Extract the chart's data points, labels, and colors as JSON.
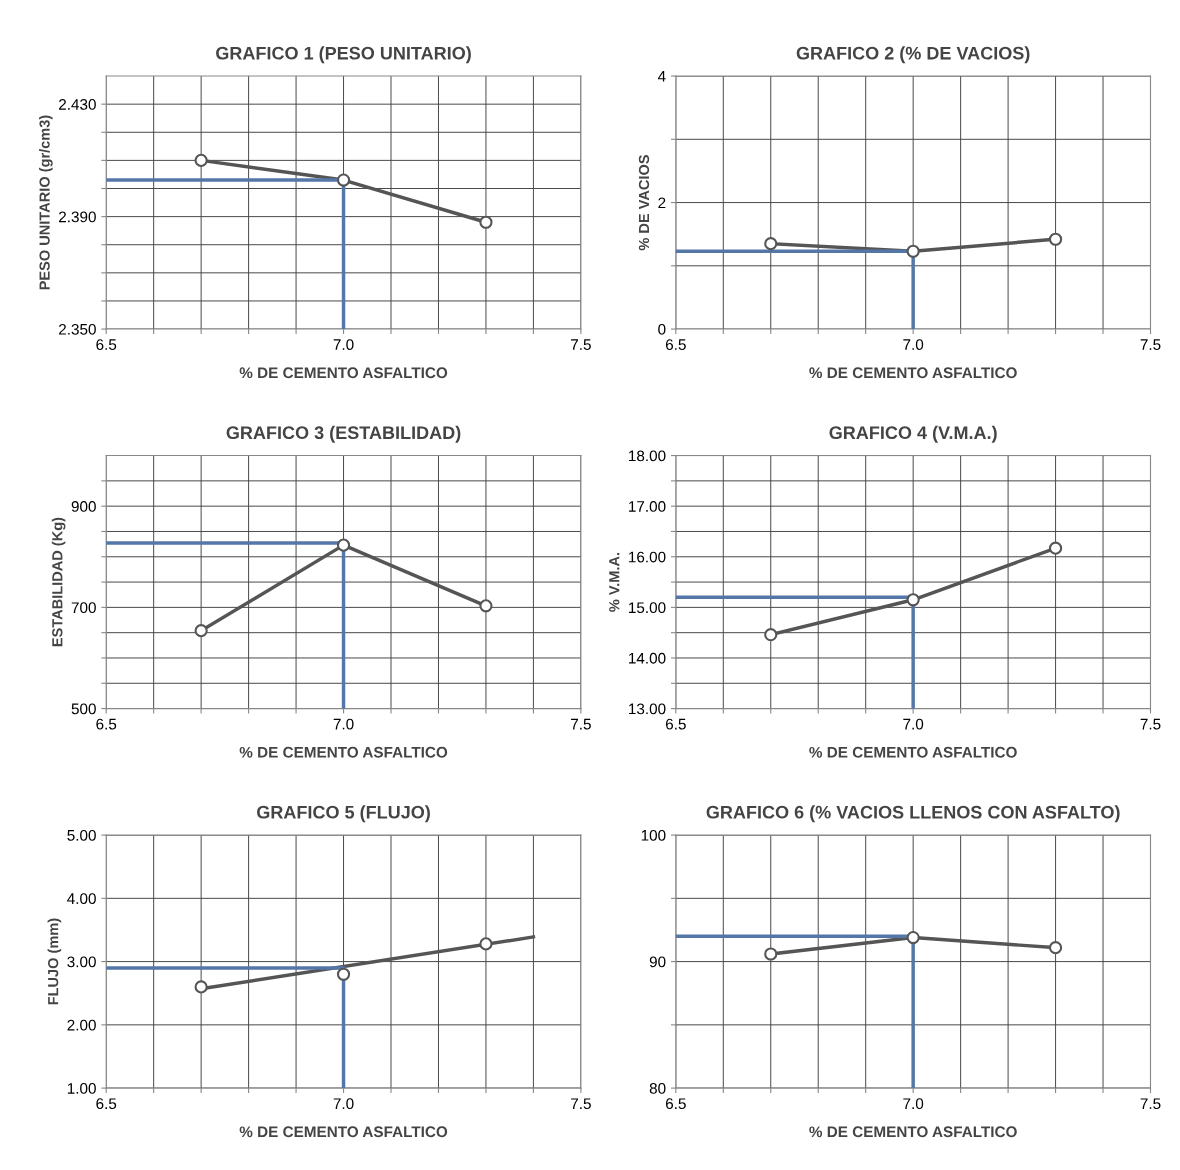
{
  "chart_data": [
    {
      "type": "line",
      "title": "GRAFICO 1 (PESO UNITARIO)",
      "xlabel": "% DE CEMENTO ASFALTICO",
      "ylabel": "PESO UNITARIO (gr/cm3)",
      "grid": true,
      "marker": "circle",
      "line_style": "solid",
      "xlim": [
        6.5,
        7.5
      ],
      "xticks": [
        {
          "value": 6.5,
          "label": "6.5"
        },
        {
          "value": 6.6,
          "label": null
        },
        {
          "value": 6.7,
          "label": null
        },
        {
          "value": 6.8,
          "label": null
        },
        {
          "value": 6.9,
          "label": null
        },
        {
          "value": 7.0,
          "label": "7.0"
        },
        {
          "value": 7.1,
          "label": null
        },
        {
          "value": 7.2,
          "label": null
        },
        {
          "value": 7.3,
          "label": null
        },
        {
          "value": 7.4,
          "label": null
        },
        {
          "value": 7.5,
          "label": "7.5"
        }
      ],
      "ylim": [
        2.35,
        2.44
      ],
      "yticks": [
        {
          "value": 2.35,
          "label": "2.350"
        },
        {
          "value": 2.36,
          "label": null
        },
        {
          "value": 2.37,
          "label": null
        },
        {
          "value": 2.38,
          "label": null
        },
        {
          "value": 2.39,
          "label": "2.390"
        },
        {
          "value": 2.4,
          "label": null
        },
        {
          "value": 2.41,
          "label": null
        },
        {
          "value": 2.42,
          "label": null
        },
        {
          "value": 2.43,
          "label": "2.430"
        }
      ],
      "series": [
        {
          "color": "#555555",
          "x": [
            6.7,
            7.0,
            7.3
          ],
          "values": [
            2.41,
            2.403,
            2.388
          ]
        },
        {
          "type": "line",
          "color": "#5577a8",
          "marker": "none",
          "x": [
            6.5,
            7.0,
            7.0
          ],
          "values": [
            2.403,
            2.403,
            2.35
          ]
        }
      ]
    },
    {
      "type": "line",
      "title": "GRAFICO 2 (% DE VACIOS)",
      "xlabel": "% DE CEMENTO ASFALTICO",
      "ylabel": "% DE VACIOS",
      "grid": true,
      "marker": "circle",
      "line_style": "solid",
      "xlim": [
        6.5,
        7.5
      ],
      "xticks": [
        {
          "value": 6.5,
          "label": "6.5"
        },
        {
          "value": 6.6,
          "label": null
        },
        {
          "value": 6.7,
          "label": null
        },
        {
          "value": 6.8,
          "label": null
        },
        {
          "value": 6.9,
          "label": null
        },
        {
          "value": 7.0,
          "label": "7.0"
        },
        {
          "value": 7.1,
          "label": null
        },
        {
          "value": 7.2,
          "label": null
        },
        {
          "value": 7.3,
          "label": null
        },
        {
          "value": 7.4,
          "label": null
        },
        {
          "value": 7.5,
          "label": "7.5"
        }
      ],
      "ylim": [
        0,
        4
      ],
      "yticks": [
        0,
        {
          "value": 1,
          "label": null
        },
        2,
        {
          "value": 3,
          "label": null
        },
        4
      ],
      "series": [
        {
          "color": "#555555",
          "x": [
            6.7,
            7.0,
            7.3
          ],
          "values": [
            1.35,
            1.23,
            1.42
          ]
        },
        {
          "type": "line",
          "color": "#5577a8",
          "marker": "none",
          "x": [
            6.5,
            7.0,
            7.0
          ],
          "values": [
            1.23,
            1.23,
            0
          ]
        }
      ]
    },
    {
      "type": "line",
      "title": "GRAFICO 3 (ESTABILIDAD)",
      "xlabel": "% DE CEMENTO ASFALTICO",
      "ylabel": "ESTABILIDAD (Kg)",
      "grid": true,
      "marker": "circle",
      "line_style": "solid",
      "xlim": [
        6.5,
        7.5
      ],
      "xticks": [
        {
          "value": 6.5,
          "label": "6.5"
        },
        {
          "value": 6.6,
          "label": null
        },
        {
          "value": 6.7,
          "label": null
        },
        {
          "value": 6.8,
          "label": null
        },
        {
          "value": 6.9,
          "label": null
        },
        {
          "value": 7.0,
          "label": "7.0"
        },
        {
          "value": 7.1,
          "label": null
        },
        {
          "value": 7.2,
          "label": null
        },
        {
          "value": 7.3,
          "label": null
        },
        {
          "value": 7.4,
          "label": null
        },
        {
          "value": 7.5,
          "label": "7.5"
        }
      ],
      "ylim": [
        500,
        1000
      ],
      "yticks": [
        500,
        {
          "value": 550,
          "label": null
        },
        {
          "value": 600,
          "label": null
        },
        {
          "value": 650,
          "label": null
        },
        700,
        {
          "value": 750,
          "label": null
        },
        {
          "value": 800,
          "label": null
        },
        {
          "value": 850,
          "label": null
        },
        900,
        {
          "value": 950,
          "label": null
        }
      ],
      "series": [
        {
          "color": "#555555",
          "x": [
            6.7,
            7.0,
            7.3
          ],
          "values": [
            654,
            823,
            703
          ]
        },
        {
          "type": "line",
          "color": "#5577a8",
          "marker": "none",
          "x": [
            6.5,
            7.0,
            7.0
          ],
          "values": [
            827,
            827,
            500
          ]
        }
      ]
    },
    {
      "type": "line",
      "title": "GRAFICO 4 (V.M.A.)",
      "xlabel": "% DE CEMENTO ASFALTICO",
      "ylabel": "% V.M.A.",
      "grid": true,
      "marker": "circle",
      "line_style": "solid",
      "xlim": [
        6.5,
        7.5
      ],
      "xticks": [
        {
          "value": 6.5,
          "label": "6.5"
        },
        {
          "value": 6.6,
          "label": null
        },
        {
          "value": 6.7,
          "label": null
        },
        {
          "value": 6.8,
          "label": null
        },
        {
          "value": 6.9,
          "label": null
        },
        {
          "value": 7.0,
          "label": "7.0"
        },
        {
          "value": 7.1,
          "label": null
        },
        {
          "value": 7.2,
          "label": null
        },
        {
          "value": 7.3,
          "label": null
        },
        {
          "value": 7.4,
          "label": null
        },
        {
          "value": 7.5,
          "label": "7.5"
        }
      ],
      "ylim": [
        13,
        18
      ],
      "yticks": [
        {
          "value": 13,
          "label": "13.00"
        },
        {
          "value": 13.5,
          "label": null
        },
        {
          "value": 14,
          "label": "14.00"
        },
        {
          "value": 14.5,
          "label": null
        },
        {
          "value": 15,
          "label": "15.00"
        },
        {
          "value": 15.5,
          "label": null
        },
        {
          "value": 16,
          "label": "16.00"
        },
        {
          "value": 16.5,
          "label": null
        },
        {
          "value": 17,
          "label": "17.00"
        },
        {
          "value": 17.5,
          "label": null
        },
        {
          "value": 18,
          "label": "18.00"
        }
      ],
      "series": [
        {
          "color": "#555555",
          "x": [
            6.7,
            7.0,
            7.3
          ],
          "values": [
            14.46,
            15.15,
            16.17
          ]
        },
        {
          "type": "line",
          "color": "#5577a8",
          "marker": "none",
          "x": [
            6.5,
            7.0,
            7.0
          ],
          "values": [
            15.2,
            15.2,
            13
          ]
        }
      ]
    },
    {
      "type": "scatter",
      "title": "GRAFICO 5 (FLUJO)",
      "xlabel": "% DE CEMENTO ASFALTICO",
      "ylabel": "FLUJO (mm)",
      "grid": true,
      "marker": "circle",
      "line_style": "solid",
      "xlim": [
        6.5,
        7.5
      ],
      "xticks": [
        {
          "value": 6.5,
          "label": "6.5"
        },
        {
          "value": 6.6,
          "label": null
        },
        {
          "value": 6.7,
          "label": null
        },
        {
          "value": 6.8,
          "label": null
        },
        {
          "value": 6.9,
          "label": null
        },
        {
          "value": 7.0,
          "label": "7.0"
        },
        {
          "value": 7.1,
          "label": null
        },
        {
          "value": 7.2,
          "label": null
        },
        {
          "value": 7.3,
          "label": null
        },
        {
          "value": 7.4,
          "label": null
        },
        {
          "value": 7.5,
          "label": "7.5"
        }
      ],
      "ylim": [
        1,
        5
      ],
      "yticks": [
        {
          "value": 1,
          "label": "1.00"
        },
        {
          "value": 2,
          "label": "2.00"
        },
        {
          "value": 3,
          "label": "3.00"
        },
        {
          "value": 4,
          "label": "4.00"
        },
        {
          "value": 5,
          "label": "5.00"
        }
      ],
      "series": [
        {
          "color": "#555555",
          "x": [
            6.7,
            7.0,
            7.3
          ],
          "values": [
            2.6,
            2.8,
            3.28
          ]
        },
        {
          "type": "line",
          "color": "#555555",
          "marker": "none",
          "x": [
            6.7,
            7.4
          ],
          "values": [
            2.57,
            3.39
          ]
        },
        {
          "type": "line",
          "color": "#5577a8",
          "marker": "none",
          "x": [
            6.5,
            7.0,
            7.0
          ],
          "values": [
            2.9,
            2.9,
            1
          ]
        }
      ]
    },
    {
      "type": "line",
      "title": "GRAFICO 6 (% VACIOS LLENOS CON ASFALTO)",
      "xlabel": "% DE CEMENTO ASFALTICO",
      "grid": true,
      "marker": "circle",
      "line_style": "solid",
      "xlim": [
        6.5,
        7.5
      ],
      "xticks": [
        {
          "value": 6.5,
          "label": "6.5"
        },
        {
          "value": 6.6,
          "label": null
        },
        {
          "value": 6.7,
          "label": null
        },
        {
          "value": 6.8,
          "label": null
        },
        {
          "value": 6.9,
          "label": null
        },
        {
          "value": 7.0,
          "label": "7.0"
        },
        {
          "value": 7.1,
          "label": null
        },
        {
          "value": 7.2,
          "label": null
        },
        {
          "value": 7.3,
          "label": null
        },
        {
          "value": 7.4,
          "label": null
        },
        {
          "value": 7.5,
          "label": "7.5"
        }
      ],
      "ylim": [
        80,
        100
      ],
      "yticks": [
        80,
        {
          "value": 85,
          "label": null
        },
        90,
        {
          "value": 95,
          "label": null
        },
        100
      ],
      "series": [
        {
          "color": "#555555",
          "x": [
            6.7,
            7.0,
            7.3
          ],
          "values": [
            90.6,
            91.9,
            91.1
          ]
        },
        {
          "type": "line",
          "color": "#5577a8",
          "marker": "none",
          "x": [
            6.5,
            7.0,
            7.0
          ],
          "values": [
            92.0,
            92.0,
            80
          ]
        }
      ]
    }
  ]
}
